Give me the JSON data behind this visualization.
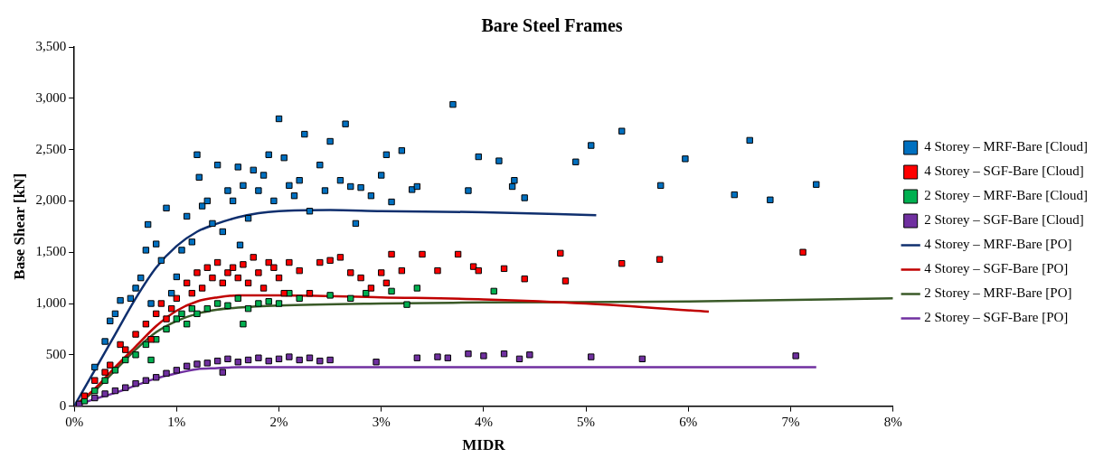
{
  "chart_data": {
    "type": "scatter",
    "title": "Bare Steel Frames",
    "xlabel": "MIDR",
    "ylabel": "Base Shear [kN]",
    "legend": "right",
    "grid": false,
    "xlim": [
      0,
      8
    ],
    "xticks": [
      {
        "value": 0,
        "label": "0%"
      },
      {
        "value": 1,
        "label": "1%"
      },
      {
        "value": 2,
        "label": "2%"
      },
      {
        "value": 3,
        "label": "3%"
      },
      {
        "value": 4,
        "label": "4%"
      },
      {
        "value": 5,
        "label": "5%"
      },
      {
        "value": 6,
        "label": "6%"
      },
      {
        "value": 7,
        "label": "7%"
      },
      {
        "value": 8,
        "label": "8%"
      }
    ],
    "ylim": [
      0,
      3500
    ],
    "yticks": [
      0,
      {
        "value": 500,
        "label": "500"
      },
      {
        "value": 1000,
        "label": "1,000"
      },
      {
        "value": 1500,
        "label": "1,500"
      },
      {
        "value": 2000,
        "label": "2,000"
      },
      {
        "value": 2500,
        "label": "2,500"
      },
      {
        "value": 3000,
        "label": "3,000"
      },
      {
        "value": 3500,
        "label": "3,500"
      }
    ],
    "series": [
      {
        "name": "4 Storey – MRF-Bare [Cloud]",
        "type": "scatter",
        "marker": "square",
        "color": "#0070c0",
        "x": [
          0.2,
          0.3,
          0.35,
          0.4,
          0.45,
          0.55,
          0.6,
          0.65,
          0.7,
          0.72,
          0.75,
          0.8,
          0.85,
          0.9,
          0.95,
          1.0,
          1.05,
          1.1,
          1.15,
          1.2,
          1.22,
          1.25,
          1.3,
          1.35,
          1.4,
          1.45,
          1.5,
          1.55,
          1.6,
          1.62,
          1.65,
          1.7,
          1.75,
          1.8,
          1.85,
          1.9,
          1.95,
          2.0,
          2.05,
          2.1,
          2.15,
          2.2,
          2.25,
          2.3,
          2.4,
          2.45,
          2.5,
          2.6,
          2.65,
          2.7,
          2.75,
          2.8,
          2.9,
          3.0,
          3.05,
          3.1,
          3.2,
          3.3,
          3.35,
          3.7,
          3.85,
          3.95,
          4.15,
          4.28,
          4.3,
          4.4,
          4.9,
          5.05,
          5.35,
          5.73,
          5.97,
          6.45,
          6.6,
          6.8,
          7.25
        ],
        "values": [
          380,
          630,
          830,
          900,
          1030,
          1050,
          1150,
          1250,
          1520,
          1770,
          1000,
          1580,
          1420,
          1930,
          1100,
          1260,
          1520,
          1850,
          1600,
          2450,
          2230,
          1950,
          2000,
          1780,
          2350,
          1700,
          2100,
          2000,
          2330,
          1570,
          2150,
          1830,
          2300,
          2100,
          2250,
          2450,
          2000,
          2800,
          2420,
          2150,
          2050,
          2200,
          2650,
          1900,
          2350,
          2100,
          2580,
          2200,
          2750,
          2140,
          1780,
          2130,
          2050,
          2250,
          2450,
          1990,
          2490,
          2110,
          2140,
          2940,
          2100,
          2430,
          2390,
          2140,
          2200,
          2030,
          2380,
          2540,
          2680,
          2150,
          2410,
          2060,
          2590,
          2010,
          2160
        ]
      },
      {
        "name": "4 Storey – SGF-Bare [Cloud]",
        "type": "scatter",
        "marker": "square",
        "color": "#ff0000",
        "x": [
          0.1,
          0.2,
          0.3,
          0.35,
          0.45,
          0.5,
          0.6,
          0.7,
          0.75,
          0.8,
          0.85,
          0.9,
          0.95,
          1.0,
          1.1,
          1.15,
          1.2,
          1.25,
          1.3,
          1.35,
          1.4,
          1.45,
          1.5,
          1.55,
          1.6,
          1.65,
          1.7,
          1.75,
          1.8,
          1.85,
          1.9,
          1.95,
          2.0,
          2.05,
          2.1,
          2.2,
          2.3,
          2.4,
          2.5,
          2.6,
          2.7,
          2.8,
          2.9,
          3.0,
          3.05,
          3.1,
          3.2,
          3.4,
          3.55,
          3.75,
          3.9,
          3.95,
          4.2,
          4.4,
          4.75,
          4.8,
          5.35,
          5.72,
          7.12
        ],
        "values": [
          100,
          250,
          330,
          400,
          600,
          550,
          700,
          800,
          650,
          900,
          1000,
          850,
          950,
          1050,
          1200,
          1100,
          1300,
          1150,
          1350,
          1250,
          1400,
          1200,
          1300,
          1350,
          1250,
          1380,
          1200,
          1450,
          1300,
          1150,
          1400,
          1350,
          1250,
          1100,
          1400,
          1320,
          1100,
          1400,
          1420,
          1450,
          1300,
          1250,
          1150,
          1300,
          1200,
          1480,
          1320,
          1480,
          1320,
          1480,
          1360,
          1320,
          1340,
          1240,
          1490,
          1220,
          1390,
          1430,
          1500
        ]
      },
      {
        "name": "2 Storey – MRF-Bare [Cloud]",
        "type": "scatter",
        "marker": "square",
        "color": "#00b050",
        "x": [
          0.1,
          0.2,
          0.3,
          0.4,
          0.5,
          0.6,
          0.7,
          0.75,
          0.8,
          0.9,
          1.0,
          1.05,
          1.1,
          1.15,
          1.2,
          1.3,
          1.4,
          1.5,
          1.6,
          1.65,
          1.7,
          1.8,
          1.9,
          2.0,
          2.1,
          2.2,
          2.5,
          2.7,
          2.85,
          3.1,
          3.25,
          3.35,
          4.1
        ],
        "values": [
          50,
          150,
          250,
          350,
          450,
          500,
          600,
          450,
          650,
          750,
          850,
          900,
          800,
          950,
          900,
          950,
          1000,
          980,
          1050,
          800,
          950,
          1000,
          1020,
          1000,
          1100,
          1050,
          1080,
          1050,
          1100,
          1120,
          990,
          1150,
          1120
        ]
      },
      {
        "name": "2 Storey – SGF-Bare [Cloud]",
        "type": "scatter",
        "marker": "square",
        "color": "#7030a0",
        "x": [
          0.05,
          0.2,
          0.3,
          0.4,
          0.5,
          0.6,
          0.7,
          0.8,
          0.9,
          1.0,
          1.1,
          1.2,
          1.3,
          1.4,
          1.45,
          1.5,
          1.6,
          1.7,
          1.8,
          1.9,
          2.0,
          2.1,
          2.2,
          2.3,
          2.4,
          2.5,
          2.95,
          3.35,
          3.55,
          3.65,
          3.85,
          4.0,
          4.2,
          4.35,
          4.45,
          5.05,
          5.55,
          7.05
        ],
        "values": [
          20,
          80,
          120,
          150,
          180,
          220,
          250,
          280,
          320,
          350,
          390,
          410,
          420,
          440,
          330,
          460,
          430,
          450,
          470,
          440,
          460,
          480,
          450,
          470,
          440,
          450,
          430,
          470,
          480,
          470,
          510,
          490,
          510,
          460,
          500,
          480,
          460,
          490
        ]
      },
      {
        "name": "4 Storey – MRF-Bare [PO]",
        "type": "line",
        "marker": "none",
        "color": "#0f2f6e",
        "x": [
          0,
          0.2,
          0.4,
          0.6,
          0.8,
          1.0,
          1.2,
          1.4,
          1.6,
          1.8,
          2.0,
          2.5,
          3.0,
          4.0,
          5.1
        ],
        "values": [
          0,
          350,
          700,
          1050,
          1350,
          1560,
          1700,
          1780,
          1840,
          1880,
          1900,
          1910,
          1900,
          1890,
          1860
        ]
      },
      {
        "name": "4 Storey – SGF-Bare [PO]",
        "type": "line",
        "marker": "none",
        "color": "#c00000",
        "x": [
          0,
          0.2,
          0.4,
          0.6,
          0.8,
          1.0,
          1.2,
          1.4,
          1.6,
          2.0,
          3.0,
          4.0,
          5.0,
          6.2
        ],
        "values": [
          0,
          170,
          380,
          580,
          780,
          930,
          1020,
          1060,
          1080,
          1080,
          1060,
          1040,
          1000,
          920
        ]
      },
      {
        "name": "2 Storey – MRF-Bare [PO]",
        "type": "line",
        "marker": "none",
        "color": "#3a5a28",
        "x": [
          0,
          0.2,
          0.4,
          0.6,
          0.8,
          1.0,
          1.2,
          1.4,
          1.6,
          2.0,
          3.0,
          4.0,
          6.0,
          8.0
        ],
        "values": [
          0,
          150,
          350,
          550,
          720,
          830,
          900,
          940,
          960,
          980,
          1000,
          1010,
          1020,
          1050
        ]
      },
      {
        "name": "2 Storey – SGF-Bare [PO]",
        "type": "line",
        "marker": "none",
        "color": "#7030a0",
        "x": [
          0,
          0.2,
          0.4,
          0.6,
          0.8,
          1.0,
          1.2,
          1.4,
          1.6,
          2.0,
          4.0,
          7.25
        ],
        "values": [
          0,
          70,
          130,
          200,
          270,
          320,
          360,
          370,
          380,
          380,
          380,
          380
        ]
      }
    ]
  }
}
